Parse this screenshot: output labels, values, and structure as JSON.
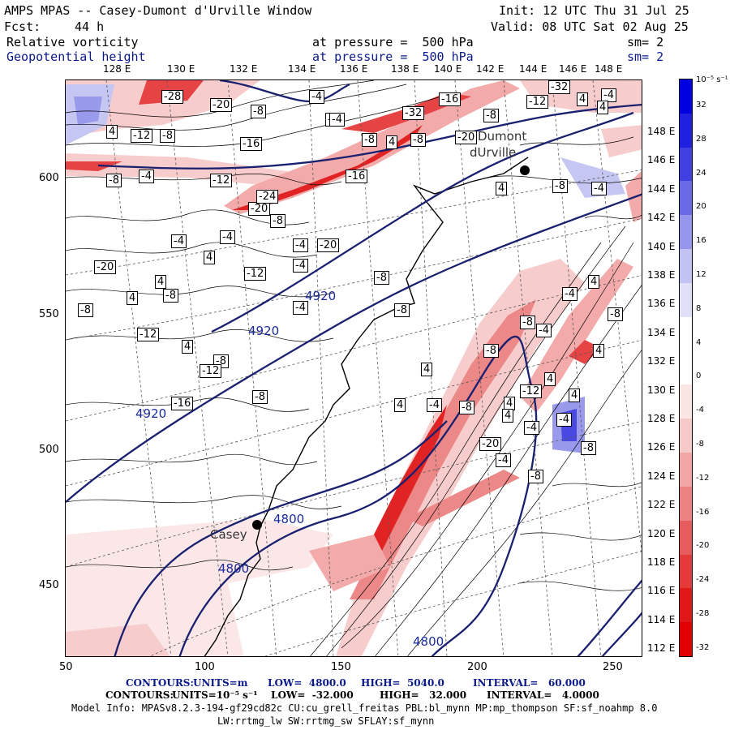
{
  "header": {
    "title": "AMPS MPAS -- Casey-Dumont d'Urville Window",
    "init": "Init: 12 UTC Thu 31 Jul 25",
    "fcst_label": "Fcst:",
    "fcst_value": "44 h",
    "valid": "Valid: 08 UTC Sat 02 Aug 25",
    "field1": "Relative vorticity",
    "field1_level": "at pressure =  500 hPa",
    "field1_sm": "sm= 2",
    "field2": "Geopotential height",
    "field2_level": "at pressure =  500 hPa",
    "field2_sm": "sm= 2"
  },
  "colorbar": {
    "unit": "10⁻⁵ s⁻¹",
    "labels": [
      "32",
      "28",
      "24",
      "20",
      "16",
      "12",
      "8",
      "4",
      "0",
      "-4",
      "-8",
      "-12",
      "-16",
      "-20",
      "-24",
      "-28",
      "-32"
    ],
    "colors": [
      "#0000e0",
      "#2020e0",
      "#4040e0",
      "#6a6ae6",
      "#9595ec",
      "#c3c3f3",
      "#e0e0f8",
      "#ffffff",
      "#ffffff",
      "#fbe6e6",
      "#f7caca",
      "#f2a6a6",
      "#ec8282",
      "#e65c5c",
      "#e53a3a",
      "#e01818",
      "#e00000"
    ]
  },
  "axes": {
    "x_ticks": [
      "50",
      "100",
      "150",
      "200",
      "250"
    ],
    "y_ticks": [
      "600",
      "550",
      "500",
      "450"
    ],
    "lon_labels": [
      "128 E",
      "130 E",
      "132 E",
      "134 E",
      "136 E",
      "138 E",
      "140 E",
      "142 E",
      "144 E",
      "146 E",
      "148 E"
    ],
    "lat_labels": [
      "148 E",
      "146 E",
      "144 E",
      "142 E",
      "140 E",
      "138 E",
      "136 E",
      "134 E",
      "132 E",
      "130 E",
      "128 E",
      "126 E",
      "124 E",
      "122 E",
      "120 E",
      "118 E",
      "116 E",
      "114 E",
      "112 E"
    ]
  },
  "stations": {
    "casey": "Casey",
    "dumont": "Dumont",
    "durville": "dUrville"
  },
  "height_labels": [
    "4920",
    "4920",
    "4920",
    "4800",
    "4800",
    "4800"
  ],
  "vort_labels": [
    "-28",
    "-20",
    "-8",
    "-4",
    "-4",
    "-32",
    "-16",
    "-8",
    "-12",
    "4",
    "-4",
    "4",
    "-12",
    "-8",
    "-16",
    "-4",
    "-8",
    "4",
    "-8",
    "-20",
    "-32",
    "4",
    "-8",
    "-4",
    "4",
    "-4",
    "-8",
    "-20",
    "-8",
    "-4",
    "4",
    "-8",
    "-8",
    "4",
    "-12",
    "4",
    "-8",
    "-12",
    "-16",
    "-12",
    "-8",
    "-4",
    "-8",
    "-20",
    "-24",
    "-8",
    "-16",
    "-4",
    "-4",
    "-20",
    "-12",
    "-12",
    "-4",
    "4",
    "4",
    "-4",
    "-8",
    "-4",
    "4",
    "-8",
    "4",
    "-8",
    "4",
    "-4",
    "4",
    "-4",
    "-8",
    "4",
    "-8",
    "4",
    "4",
    "-4",
    "-8",
    "-20",
    "-4"
  ],
  "footer": {
    "c1_label": "CONTOURS:",
    "c1_units": "UNITS=m",
    "c1_low": "LOW=  4800.0",
    "c1_high": "HIGH=  5040.0",
    "c1_int": "INTERVAL=   60.000",
    "c2_label": "CONTOURS:",
    "c2_units": "UNITS=10⁻⁵ s⁻¹",
    "c2_low": "LOW=  -32.000",
    "c2_high": "HIGH=   32.000",
    "c2_int": "INTERVAL=   4.0000",
    "model1": "Model Info: MPASv8.2.3-194-gf29cd82c CU:cu_grell_freitas PBL:bl_mynn MP:mp_thompson SF:sf_noahmp 8.0",
    "model2": "LW:rrtmg_lw SW:rrtmg_sw SFLAY:sf_mynn"
  }
}
